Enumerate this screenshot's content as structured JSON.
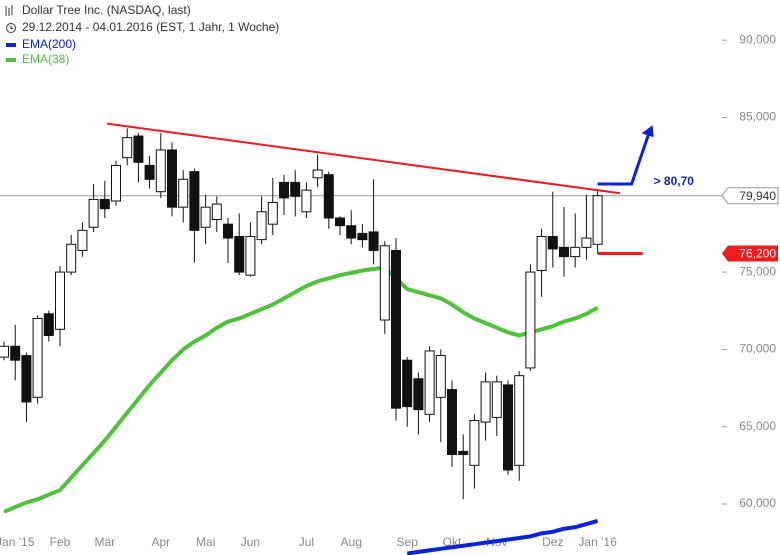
{
  "chart_data": {
    "type": "candlestick",
    "title": "Dollar Tree Inc. (NASDAQ, last)",
    "subtitle": "29.12.2014 - 04.01.2016 (EST, 1 Jahr, 1 Woche)",
    "categories": [
      null,
      "Jan '15",
      null,
      null,
      null,
      "Feb",
      null,
      null,
      null,
      "Mär",
      null,
      null,
      null,
      null,
      "Apr",
      null,
      null,
      null,
      "Mai",
      null,
      null,
      null,
      "Jun",
      null,
      null,
      null,
      null,
      "Jul",
      null,
      null,
      null,
      "Aug",
      null,
      null,
      null,
      null,
      "Sep",
      null,
      null,
      null,
      "Okt",
      null,
      null,
      null,
      "Nov",
      null,
      null,
      null,
      null,
      "Dez",
      null,
      null,
      null,
      "Jan '16"
    ],
    "ohlc": {
      "open": [
        69.5,
        70.2,
        69.6,
        66.9,
        72.3,
        71.3,
        75.0,
        76.4,
        77.9,
        79.7,
        79.6,
        82.4,
        83.8,
        81.9,
        80.2,
        82.9,
        79.2,
        81.5,
        77.9,
        78.4,
        78.1,
        77.3,
        74.8,
        77.1,
        78.1,
        80.8,
        80.8,
        78.9,
        81.1,
        81.3,
        78.5,
        78.0,
        77.5,
        77.6,
        71.9,
        76.4,
        69.3,
        68.1,
        65.8,
        66.9,
        67.4,
        63.4,
        62.5,
        65.3,
        65.6,
        67.7,
        62.5,
        68.8,
        75.1,
        77.3,
        76.6,
        76.0,
        76.6,
        76.8
      ],
      "high": [
        70.5,
        71.6,
        69.8,
        72.2,
        72.5,
        75.4,
        77.4,
        78.2,
        80.7,
        80.9,
        82.2,
        84.3,
        84.0,
        82.5,
        84.0,
        83.4,
        81.6,
        81.7,
        80.0,
        79.9,
        78.5,
        78.8,
        78.2,
        79.9,
        81.1,
        81.3,
        81.6,
        80.8,
        82.6,
        81.5,
        78.6,
        79.0,
        78.1,
        81.0,
        77.0,
        77.2,
        69.5,
        68.5,
        70.2,
        70.0,
        68.0,
        64.5,
        65.8,
        68.5,
        68.3,
        68.0,
        68.6,
        75.5,
        77.8,
        80.2,
        79.2,
        78.8,
        80.0,
        80.3
      ],
      "low": [
        69.3,
        68.0,
        65.3,
        66.5,
        70.5,
        70.2,
        74.8,
        76.0,
        77.6,
        78.5,
        79.3,
        81.9,
        80.8,
        80.4,
        79.8,
        78.6,
        78.2,
        75.6,
        76.8,
        77.6,
        75.6,
        74.8,
        74.7,
        76.8,
        77.4,
        78.7,
        78.6,
        78.5,
        80.5,
        77.8,
        77.4,
        76.8,
        76.6,
        75.5,
        71.0,
        65.4,
        65.0,
        64.5,
        65.3,
        64.0,
        62.4,
        60.3,
        61.0,
        64.1,
        64.4,
        61.9,
        61.5,
        68.6,
        73.4,
        75.3,
        74.7,
        75.3,
        75.8,
        76.2
      ],
      "close": [
        70.2,
        69.3,
        66.6,
        72.0,
        70.9,
        75.0,
        76.8,
        77.7,
        79.7,
        79.1,
        81.9,
        83.7,
        82.1,
        81.0,
        82.9,
        79.2,
        81.0,
        77.7,
        79.2,
        79.4,
        77.2,
        75.0,
        77.3,
        78.9,
        79.5,
        79.8,
        79.9,
        80.3,
        81.6,
        78.5,
        78.0,
        77.2,
        77.1,
        76.4,
        76.7,
        66.2,
        66.3,
        66.1,
        69.9,
        69.6,
        63.2,
        63.2,
        65.4,
        67.9,
        67.9,
        62.2,
        68.3,
        75.0,
        77.3,
        76.5,
        76.0,
        76.6,
        77.2,
        79.94
      ]
    },
    "series": [
      {
        "name": "EMA(200)",
        "color": "#0a23d6",
        "values": [
          null,
          null,
          null,
          null,
          null,
          null,
          null,
          null,
          null,
          null,
          null,
          null,
          null,
          null,
          null,
          null,
          null,
          null,
          null,
          null,
          null,
          null,
          null,
          null,
          null,
          null,
          null,
          null,
          null,
          null,
          null,
          null,
          null,
          null,
          null,
          null,
          56.8,
          56.9,
          57.0,
          57.1,
          57.2,
          57.3,
          57.4,
          57.5,
          57.6,
          57.7,
          57.8,
          57.9,
          58.1,
          58.2,
          58.4,
          58.5,
          58.7,
          58.9
        ]
      },
      {
        "name": "EMA(38)",
        "color": "#4ec23a",
        "values": [
          59.5,
          59.8,
          60.1,
          60.3,
          60.6,
          60.9,
          61.7,
          62.5,
          63.3,
          64.1,
          65.0,
          65.9,
          66.8,
          67.7,
          68.5,
          69.3,
          70.0,
          70.5,
          70.9,
          71.4,
          71.8,
          72.0,
          72.3,
          72.6,
          72.9,
          73.3,
          73.7,
          74.1,
          74.4,
          74.6,
          74.8,
          74.95,
          75.1,
          75.2,
          75.3,
          74.6,
          73.9,
          73.7,
          73.5,
          73.3,
          72.9,
          72.4,
          72.0,
          71.7,
          71.4,
          71.1,
          70.9,
          71.1,
          71.3,
          71.5,
          71.8,
          72.0,
          72.3,
          72.7
        ]
      }
    ],
    "ylim": [
      56.7,
      92.6
    ],
    "yticks": [
      {
        "value": 60,
        "label": "60,000"
      },
      {
        "value": 65,
        "label": "65,000"
      },
      {
        "value": 70,
        "label": "70,000"
      },
      {
        "value": 75,
        "label": "75,000"
      },
      {
        "value": 80,
        "label": "80,000"
      },
      {
        "value": 85,
        "label": "85,000"
      },
      {
        "value": 90,
        "label": "90,000"
      }
    ],
    "grid": false,
    "trendline": {
      "start": [
        9.2,
        84.6
      ],
      "end": [
        55,
        80.1
      ],
      "color": "#ee1c1c"
    },
    "last": {
      "value": 79.94,
      "label": "79,940"
    },
    "stop": {
      "value": 76.2,
      "label": "76,200",
      "color": "#ee1c1c"
    },
    "target": {
      "value": 80.7,
      "label": "> 80,70",
      "arrow_tip": 84.5,
      "color": "#0a23d6"
    }
  }
}
